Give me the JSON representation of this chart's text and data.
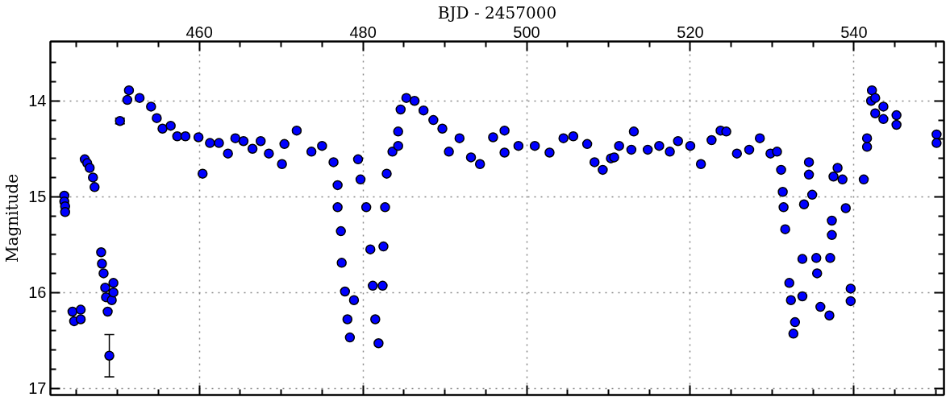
{
  "chart_data": {
    "type": "scatter",
    "xlabel": "BJD - 2457000",
    "ylabel": "Magnitude",
    "x": [
      443.5,
      443.5,
      443.6,
      443.6,
      444.5,
      444.7,
      445.5,
      445.5,
      446,
      446.3,
      446.6,
      447,
      447.2,
      448,
      448.1,
      448.3,
      448.5,
      448.6,
      448.8,
      449,
      449.3,
      449.5,
      449.5,
      450.3,
      451.2,
      451.4,
      452.7,
      454.1,
      454.8,
      455.5,
      456.5,
      457.3,
      458.3,
      459.9,
      460.4,
      461.3,
      462.4,
      463.5,
      464.4,
      465.4,
      466.5,
      467.5,
      468.5,
      470.1,
      470.4,
      471.9,
      473.7,
      475,
      476.4,
      476.9,
      476.9,
      477.3,
      477.4,
      477.8,
      478.1,
      478.4,
      478.9,
      479.4,
      479.7,
      480.4,
      480.9,
      481.2,
      481.5,
      481.9,
      482.4,
      482.5,
      482.7,
      482.9,
      483.6,
      484.3,
      484.3,
      484.6,
      485.3,
      486.3,
      487.4,
      488.6,
      489.7,
      490.5,
      491.8,
      493.2,
      494.3,
      495.9,
      497.3,
      497.3,
      499,
      501,
      502.8,
      504.5,
      505.7,
      507.4,
      508.3,
      509.3,
      510.3,
      510.7,
      511.3,
      512.8,
      513.1,
      514.8,
      516.2,
      517.5,
      518.5,
      520,
      521.3,
      522.6,
      523.7,
      524.4,
      525.7,
      527.2,
      528.5,
      529.8,
      530.6,
      531.1,
      531.3,
      531.4,
      531.6,
      532.1,
      532.3,
      532.6,
      532.8,
      533.7,
      533.7,
      533.9,
      534.5,
      534.5,
      534.9,
      535.4,
      535.5,
      535.9,
      537,
      537.1,
      537.3,
      537.3,
      537.5,
      538,
      538.6,
      539,
      539.6,
      539.6,
      541.2,
      541.6,
      541.6,
      542.1,
      542.2,
      542.6,
      542.6,
      543.6,
      543.6,
      545.2,
      545.2,
      550.1,
      550.1
    ],
    "values": [
      14.99,
      15.05,
      15.1,
      15.16,
      16.2,
      16.3,
      16.18,
      16.28,
      14.61,
      14.65,
      14.7,
      14.8,
      14.9,
      15.58,
      15.7,
      15.8,
      15.95,
      16.05,
      16.2,
      16.66,
      16.08,
      15.9,
      16.0,
      14.21,
      13.99,
      13.89,
      13.97,
      14.06,
      14.18,
      14.29,
      14.26,
      14.37,
      14.37,
      14.38,
      14.76,
      14.44,
      14.44,
      14.55,
      14.39,
      14.42,
      14.5,
      14.42,
      14.55,
      14.66,
      14.45,
      14.31,
      14.53,
      14.47,
      14.64,
      14.88,
      15.11,
      15.36,
      15.69,
      15.99,
      16.28,
      16.47,
      16.08,
      14.61,
      14.82,
      15.11,
      15.55,
      15.93,
      16.28,
      16.53,
      15.93,
      15.52,
      15.11,
      14.76,
      14.53,
      14.47,
      14.32,
      14.09,
      13.97,
      14.0,
      14.1,
      14.2,
      14.29,
      14.53,
      14.39,
      14.59,
      14.66,
      14.38,
      14.31,
      14.54,
      14.47,
      14.47,
      14.54,
      14.39,
      14.37,
      14.45,
      14.64,
      14.72,
      14.6,
      14.59,
      14.47,
      14.51,
      14.32,
      14.51,
      14.47,
      14.53,
      14.42,
      14.47,
      14.66,
      14.41,
      14.31,
      14.32,
      14.55,
      14.51,
      14.39,
      14.55,
      14.53,
      14.72,
      14.95,
      15.11,
      15.34,
      15.9,
      16.08,
      16.43,
      16.31,
      16.04,
      15.65,
      15.08,
      14.64,
      14.77,
      14.98,
      15.64,
      15.8,
      16.15,
      16.24,
      15.64,
      15.4,
      15.25,
      14.79,
      14.7,
      14.82,
      15.12,
      15.96,
      16.09,
      14.82,
      14.48,
      14.39,
      14.0,
      13.89,
      13.97,
      14.13,
      14.06,
      14.19,
      14.15,
      14.25,
      14.35,
      14.44
    ],
    "errors": [
      null,
      null,
      null,
      null,
      null,
      null,
      null,
      null,
      null,
      null,
      null,
      null,
      null,
      null,
      null,
      null,
      null,
      null,
      null,
      0.22,
      null,
      null,
      null,
      0.03,
      null,
      null,
      null,
      null,
      null,
      null,
      null,
      null,
      null,
      null,
      null,
      null,
      null,
      null,
      null,
      null,
      null,
      null,
      null,
      null,
      null,
      null,
      null,
      null,
      null,
      null,
      null,
      null,
      null,
      null,
      null,
      null,
      null,
      null,
      null,
      null,
      null,
      null,
      null,
      null,
      null,
      null,
      null,
      null,
      null,
      null,
      null,
      null,
      null,
      null,
      null,
      null,
      null,
      null,
      null,
      null,
      null,
      null,
      null,
      null,
      null,
      null,
      null,
      null,
      null,
      null,
      null,
      null,
      null,
      null,
      null,
      null,
      null,
      null,
      null,
      null,
      null,
      null,
      null,
      null,
      null,
      null,
      null,
      null,
      null,
      null,
      null,
      null,
      null,
      null,
      null,
      null,
      null,
      null,
      null,
      null,
      null,
      null,
      null,
      null,
      null,
      null,
      null,
      null,
      null,
      null,
      null,
      null,
      null,
      null,
      null,
      null,
      null,
      null,
      null,
      null,
      null,
      null,
      null,
      null,
      null,
      null,
      null,
      null,
      null,
      null,
      null
    ],
    "color": "#0000ff",
    "marker": "circle",
    "grid": true,
    "xlim": [
      441.8,
      551
    ],
    "ylim": [
      17.07,
      13.38
    ],
    "xticks": [
      {
        "value": 445,
        "label": null
      },
      {
        "value": 450,
        "label": null
      },
      {
        "value": 455,
        "label": null
      },
      460,
      {
        "value": 465,
        "label": null
      },
      {
        "value": 470,
        "label": null
      },
      {
        "value": 475,
        "label": null
      },
      480,
      {
        "value": 485,
        "label": null
      },
      {
        "value": 490,
        "label": null
      },
      {
        "value": 495,
        "label": null
      },
      500,
      {
        "value": 505,
        "label": null
      },
      {
        "value": 510,
        "label": null
      },
      {
        "value": 515,
        "label": null
      },
      520,
      {
        "value": 525,
        "label": null
      },
      {
        "value": 530,
        "label": null
      },
      {
        "value": 535,
        "label": null
      },
      540,
      {
        "value": 545,
        "label": null
      },
      {
        "value": 550,
        "label": null
      }
    ],
    "yticks": [
      {
        "value": 13.6,
        "label": null
      },
      {
        "value": 13.8,
        "label": null
      },
      14,
      {
        "value": 14.2,
        "label": null
      },
      {
        "value": 14.4,
        "label": null
      },
      {
        "value": 14.6,
        "label": null
      },
      {
        "value": 14.8,
        "label": null
      },
      15,
      {
        "value": 15.2,
        "label": null
      },
      {
        "value": 15.4,
        "label": null
      },
      {
        "value": 15.6,
        "label": null
      },
      {
        "value": 15.8,
        "label": null
      },
      16,
      {
        "value": 16.2,
        "label": null
      },
      {
        "value": 16.4,
        "label": null
      },
      {
        "value": 16.6,
        "label": null
      },
      {
        "value": 16.8,
        "label": null
      },
      17
    ]
  }
}
